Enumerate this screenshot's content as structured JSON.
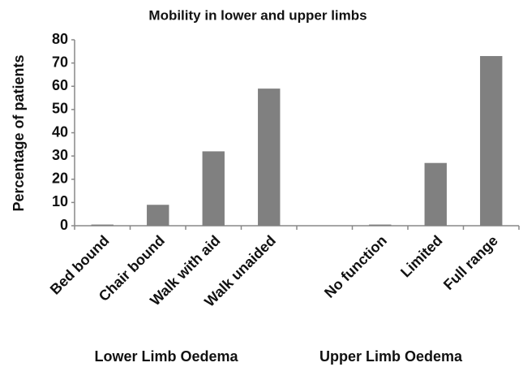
{
  "chart_data": {
    "type": "bar",
    "title": "Mobility in lower and upper limbs",
    "y_label": "Percentage of patients",
    "categories": [
      "Bed bound",
      "Chair bound",
      "Walk with aid",
      "Walk unaided",
      null,
      "No function",
      "Limited",
      "Full range"
    ],
    "values": [
      0.5,
      9,
      32,
      59,
      null,
      0.5,
      27,
      73
    ],
    "color": "#808080",
    "ylim": [
      0,
      80
    ],
    "yticks": [
      0,
      10,
      20,
      30,
      40,
      50,
      60,
      70,
      80
    ],
    "grid": false,
    "group_labels": [
      "Lower Limb Oedema",
      "Upper Limb Oedema"
    ]
  }
}
